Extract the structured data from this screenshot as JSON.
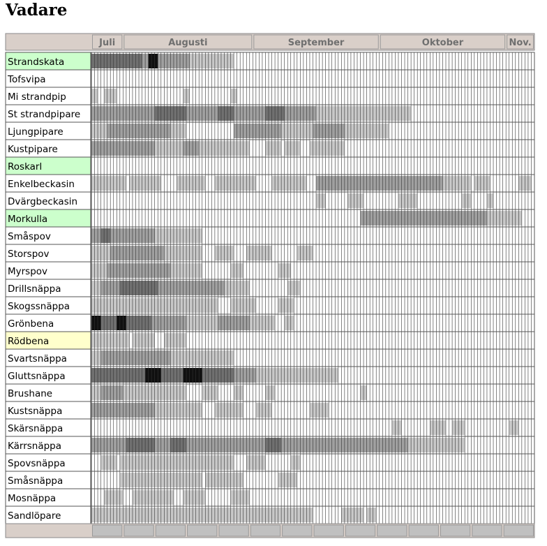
{
  "page": {
    "title": "Vadare"
  },
  "chart_data": {
    "type": "heatmap",
    "title": "Vadare",
    "months": [
      {
        "label": "Juli",
        "start": 1,
        "end": 10
      },
      {
        "label": "Augusti",
        "start": 11,
        "end": 51
      },
      {
        "label": "September",
        "start": 52,
        "end": 91
      },
      {
        "label": "Oktober",
        "start": 92,
        "end": 131
      },
      {
        "label": "Nov.",
        "start": 132,
        "end": 140
      }
    ],
    "columns": 140,
    "intensity_scale": "0 = white (none), 1 = light grey, 2 = medium grey, 3 = dark grey, 4 = black",
    "highlight_colors": {
      "green": "#ccffcc",
      "yellow": "#ffffcc"
    },
    "series": [
      {
        "name": "Strandskata",
        "highlight": "green",
        "segments": [
          [
            1,
            10,
            3
          ],
          [
            11,
            16,
            3
          ],
          [
            17,
            18,
            2
          ],
          [
            19,
            21,
            4
          ],
          [
            22,
            31,
            2
          ],
          [
            32,
            45,
            1
          ]
        ]
      },
      {
        "name": "Tofsvipa",
        "highlight": "",
        "segments": []
      },
      {
        "name": "Mi strandpip",
        "highlight": "",
        "segments": [
          [
            1,
            2,
            1
          ],
          [
            5,
            8,
            1
          ],
          [
            30,
            31,
            1
          ],
          [
            45,
            46,
            1
          ]
        ]
      },
      {
        "name": "St strandpipare",
        "highlight": "",
        "segments": [
          [
            1,
            4,
            2
          ],
          [
            5,
            20,
            2
          ],
          [
            21,
            30,
            3
          ],
          [
            31,
            40,
            2
          ],
          [
            41,
            45,
            3
          ],
          [
            46,
            55,
            2
          ],
          [
            56,
            61,
            3
          ],
          [
            62,
            71,
            2
          ],
          [
            72,
            85,
            1
          ],
          [
            86,
            101,
            1
          ]
        ]
      },
      {
        "name": "Ljungpipare",
        "highlight": "",
        "segments": [
          [
            1,
            5,
            1
          ],
          [
            6,
            25,
            2
          ],
          [
            26,
            30,
            1
          ],
          [
            46,
            52,
            2
          ],
          [
            53,
            60,
            2
          ],
          [
            61,
            70,
            1
          ],
          [
            71,
            80,
            2
          ],
          [
            81,
            94,
            1
          ]
        ]
      },
      {
        "name": "Kustpipare",
        "highlight": "",
        "segments": [
          [
            1,
            8,
            2
          ],
          [
            9,
            20,
            2
          ],
          [
            21,
            29,
            1
          ],
          [
            30,
            34,
            2
          ],
          [
            35,
            50,
            1
          ],
          [
            56,
            60,
            1
          ],
          [
            62,
            66,
            1
          ],
          [
            70,
            80,
            1
          ]
        ]
      },
      {
        "name": "Roskarl",
        "highlight": "green",
        "segments": []
      },
      {
        "name": "Enkelbeckasin",
        "highlight": "",
        "segments": [
          [
            1,
            3,
            1
          ],
          [
            4,
            11,
            1
          ],
          [
            13,
            22,
            1
          ],
          [
            28,
            36,
            1
          ],
          [
            40,
            52,
            1
          ],
          [
            58,
            68,
            1
          ],
          [
            72,
            80,
            2
          ],
          [
            81,
            111,
            2
          ],
          [
            112,
            120,
            1
          ],
          [
            122,
            126,
            1
          ],
          [
            136,
            139,
            1
          ]
        ]
      },
      {
        "name": "Dvärgbeckasin",
        "highlight": "",
        "segments": [
          [
            72,
            74,
            1
          ],
          [
            82,
            86,
            1
          ],
          [
            98,
            103,
            1
          ],
          [
            118,
            120,
            1
          ],
          [
            126,
            127,
            1
          ]
        ]
      },
      {
        "name": "Morkulla",
        "highlight": "green",
        "segments": [
          [
            86,
            95,
            2
          ],
          [
            96,
            109,
            2
          ],
          [
            110,
            125,
            2
          ],
          [
            126,
            136,
            1
          ]
        ]
      },
      {
        "name": "Småspov",
        "highlight": "",
        "segments": [
          [
            1,
            3,
            2
          ],
          [
            4,
            6,
            3
          ],
          [
            7,
            10,
            2
          ],
          [
            11,
            20,
            2
          ],
          [
            21,
            29,
            1
          ],
          [
            30,
            35,
            1
          ]
        ]
      },
      {
        "name": "Storspov",
        "highlight": "",
        "segments": [
          [
            1,
            6,
            1
          ],
          [
            7,
            23,
            2
          ],
          [
            24,
            35,
            1
          ],
          [
            40,
            45,
            1
          ],
          [
            50,
            57,
            1
          ],
          [
            66,
            70,
            1
          ]
        ]
      },
      {
        "name": "Myrspov",
        "highlight": "",
        "segments": [
          [
            1,
            5,
            1
          ],
          [
            6,
            25,
            2
          ],
          [
            26,
            35,
            1
          ],
          [
            45,
            48,
            1
          ],
          [
            60,
            63,
            1
          ]
        ]
      },
      {
        "name": "Drillsnäppa",
        "highlight": "",
        "segments": [
          [
            1,
            3,
            1
          ],
          [
            4,
            9,
            2
          ],
          [
            10,
            21,
            3
          ],
          [
            22,
            42,
            2
          ],
          [
            43,
            50,
            1
          ],
          [
            63,
            66,
            1
          ]
        ]
      },
      {
        "name": "Skogssnäppa",
        "highlight": "",
        "segments": [
          [
            1,
            9,
            1
          ],
          [
            10,
            25,
            1
          ],
          [
            26,
            40,
            1
          ],
          [
            45,
            52,
            1
          ],
          [
            60,
            64,
            1
          ]
        ]
      },
      {
        "name": "Grönbena",
        "highlight": "",
        "segments": [
          [
            1,
            3,
            4
          ],
          [
            4,
            8,
            3
          ],
          [
            9,
            11,
            4
          ],
          [
            12,
            19,
            3
          ],
          [
            20,
            30,
            2
          ],
          [
            31,
            40,
            1
          ],
          [
            41,
            50,
            2
          ],
          [
            51,
            58,
            1
          ],
          [
            62,
            64,
            1
          ]
        ]
      },
      {
        "name": "Rödbena",
        "highlight": "yellow",
        "segments": [
          [
            1,
            4,
            1
          ],
          [
            5,
            12,
            1
          ],
          [
            14,
            20,
            1
          ],
          [
            24,
            30,
            1
          ]
        ]
      },
      {
        "name": "Svartsnäppa",
        "highlight": "",
        "segments": [
          [
            1,
            3,
            1
          ],
          [
            4,
            10,
            2
          ],
          [
            11,
            25,
            2
          ],
          [
            26,
            35,
            1
          ],
          [
            36,
            45,
            1
          ]
        ]
      },
      {
        "name": "Gluttsnäppa",
        "highlight": "",
        "segments": [
          [
            1,
            10,
            3
          ],
          [
            11,
            17,
            3
          ],
          [
            18,
            22,
            4
          ],
          [
            23,
            29,
            3
          ],
          [
            30,
            35,
            4
          ],
          [
            36,
            40,
            3
          ],
          [
            41,
            45,
            3
          ],
          [
            46,
            52,
            2
          ],
          [
            53,
            60,
            1
          ],
          [
            61,
            70,
            1
          ],
          [
            71,
            78,
            1
          ]
        ]
      },
      {
        "name": "Brushane",
        "highlight": "",
        "segments": [
          [
            1,
            3,
            1
          ],
          [
            4,
            10,
            2
          ],
          [
            11,
            20,
            1
          ],
          [
            21,
            30,
            1
          ],
          [
            36,
            40,
            1
          ],
          [
            46,
            48,
            1
          ],
          [
            56,
            58,
            1
          ],
          [
            86,
            87,
            1
          ]
        ]
      },
      {
        "name": "Kustsnäppa",
        "highlight": "",
        "segments": [
          [
            1,
            5,
            2
          ],
          [
            6,
            10,
            2
          ],
          [
            11,
            20,
            2
          ],
          [
            21,
            35,
            1
          ],
          [
            40,
            48,
            1
          ],
          [
            53,
            57,
            1
          ],
          [
            70,
            75,
            1
          ]
        ]
      },
      {
        "name": "Skärsnäppa",
        "highlight": "",
        "segments": [
          [
            96,
            98,
            1
          ],
          [
            108,
            112,
            1
          ],
          [
            115,
            118,
            1
          ],
          [
            133,
            135,
            1
          ]
        ]
      },
      {
        "name": "Kärrsnäppa",
        "highlight": "",
        "segments": [
          [
            1,
            11,
            2
          ],
          [
            12,
            20,
            3
          ],
          [
            21,
            25,
            2
          ],
          [
            26,
            30,
            3
          ],
          [
            31,
            45,
            2
          ],
          [
            46,
            55,
            2
          ],
          [
            56,
            60,
            3
          ],
          [
            61,
            75,
            2
          ],
          [
            76,
            90,
            2
          ],
          [
            91,
            100,
            2
          ],
          [
            101,
            110,
            1
          ],
          [
            111,
            118,
            1
          ]
        ]
      },
      {
        "name": "Spovsnäppa",
        "highlight": "",
        "segments": [
          [
            4,
            8,
            1
          ],
          [
            10,
            24,
            1
          ],
          [
            25,
            35,
            1
          ],
          [
            36,
            45,
            1
          ],
          [
            50,
            55,
            1
          ],
          [
            64,
            66,
            1
          ]
        ]
      },
      {
        "name": "Småsnäppa",
        "highlight": "",
        "segments": [
          [
            10,
            20,
            1
          ],
          [
            21,
            35,
            1
          ],
          [
            37,
            48,
            1
          ],
          [
            60,
            65,
            1
          ]
        ]
      },
      {
        "name": "Mosnäppa",
        "highlight": "",
        "segments": [
          [
            5,
            10,
            1
          ],
          [
            14,
            26,
            1
          ],
          [
            30,
            36,
            1
          ],
          [
            45,
            50,
            1
          ]
        ]
      },
      {
        "name": "Sandlöpare",
        "highlight": "",
        "segments": [
          [
            1,
            4,
            1
          ],
          [
            5,
            15,
            1
          ],
          [
            16,
            40,
            1
          ],
          [
            41,
            50,
            1
          ],
          [
            51,
            60,
            1
          ],
          [
            61,
            70,
            1
          ],
          [
            80,
            86,
            1
          ],
          [
            88,
            90,
            1
          ]
        ]
      }
    ]
  }
}
